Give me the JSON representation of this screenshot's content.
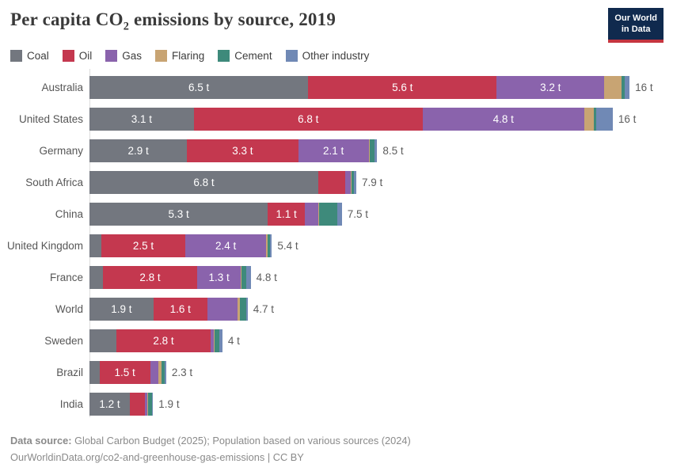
{
  "header": {
    "title_pre": "Per capita CO",
    "title_sub": "2",
    "title_post": " emissions by source, 2019",
    "logo_line1": "Our World",
    "logo_line2": "in Data"
  },
  "chart_data": {
    "type": "bar",
    "stacked": true,
    "orientation": "horizontal",
    "title": "Per capita CO₂ emissions by source, 2019",
    "unit": "tonnes of CO₂ per person",
    "legend_position": "top",
    "grid": false,
    "series_names": [
      "Coal",
      "Oil",
      "Gas",
      "Flaring",
      "Cement",
      "Other industry"
    ],
    "series_colors": [
      "#73777F",
      "#C4384F",
      "#8A63AC",
      "#C8A473",
      "#3E8A7B",
      "#7089B5"
    ],
    "rows": [
      {
        "country": "Australia",
        "values": [
          6.5,
          5.6,
          3.2,
          0.5,
          0.11,
          0.14
        ],
        "segment_labels": [
          "6.5 t",
          "5.6 t",
          "3.2 t",
          "",
          "",
          ""
        ],
        "total_label": "16 t"
      },
      {
        "country": "United States",
        "values": [
          3.1,
          6.8,
          4.8,
          0.28,
          0.09,
          0.48
        ],
        "segment_labels": [
          "3.1 t",
          "6.8 t",
          "4.8 t",
          "",
          "",
          ""
        ],
        "total_label": "16 t"
      },
      {
        "country": "Germany",
        "values": [
          2.9,
          3.3,
          2.1,
          0.03,
          0.13,
          0.09
        ],
        "segment_labels": [
          "2.9 t",
          "3.3 t",
          "2.1 t",
          "",
          "",
          ""
        ],
        "total_label": "8.5 t"
      },
      {
        "country": "South Africa",
        "values": [
          6.8,
          0.8,
          0.16,
          0.02,
          0.09,
          0.06
        ],
        "segment_labels": [
          "6.8 t",
          "",
          "",
          "",
          "",
          ""
        ],
        "total_label": "7.9 t"
      },
      {
        "country": "China",
        "values": [
          5.3,
          1.1,
          0.4,
          0.02,
          0.55,
          0.13
        ],
        "segment_labels": [
          "5.3 t",
          "1.1 t",
          "",
          "",
          "",
          ""
        ],
        "total_label": "7.5 t"
      },
      {
        "country": "United Kingdom",
        "values": [
          0.35,
          2.5,
          2.4,
          0.04,
          0.07,
          0.06
        ],
        "segment_labels": [
          "",
          "2.5 t",
          "2.4 t",
          "",
          "",
          ""
        ],
        "total_label": "5.4 t"
      },
      {
        "country": "France",
        "values": [
          0.4,
          2.8,
          1.3,
          0.02,
          0.15,
          0.12
        ],
        "segment_labels": [
          "",
          "2.8 t",
          "1.3 t",
          "",
          "",
          ""
        ],
        "total_label": "4.8 t"
      },
      {
        "country": "World",
        "values": [
          1.9,
          1.6,
          0.9,
          0.06,
          0.2,
          0.04
        ],
        "segment_labels": [
          "1.9 t",
          "1.6 t",
          "",
          "",
          "",
          ""
        ],
        "total_label": "4.7 t"
      },
      {
        "country": "Sweden",
        "values": [
          0.8,
          2.8,
          0.1,
          0.02,
          0.13,
          0.1
        ],
        "segment_labels": [
          "",
          "2.8 t",
          "",
          "",
          "",
          ""
        ],
        "total_label": "4 t"
      },
      {
        "country": "Brazil",
        "values": [
          0.3,
          1.5,
          0.25,
          0.08,
          0.1,
          0.05
        ],
        "segment_labels": [
          "",
          "1.5 t",
          "",
          "",
          "",
          ""
        ],
        "total_label": "2.3 t"
      },
      {
        "country": "India",
        "values": [
          1.2,
          0.45,
          0.07,
          0.01,
          0.12,
          0.04
        ],
        "segment_labels": [
          "1.2 t",
          "",
          "",
          "",
          "",
          ""
        ],
        "total_label": "1.9 t"
      }
    ]
  },
  "footer": {
    "source_bold": "Data source:",
    "source_rest": " Global Carbon Budget (2025); Population based on various sources (2024)",
    "credit": "OurWorldinData.org/co2-and-greenhouse-gas-emissions | CC BY"
  },
  "colors": {
    "logo_bg": "#102A4E",
    "logo_stripe": "#C5353F",
    "axis_line": "#DCDCDC",
    "title_text": "#3A3A3A",
    "bar_label_text": "#FFFFFF"
  }
}
